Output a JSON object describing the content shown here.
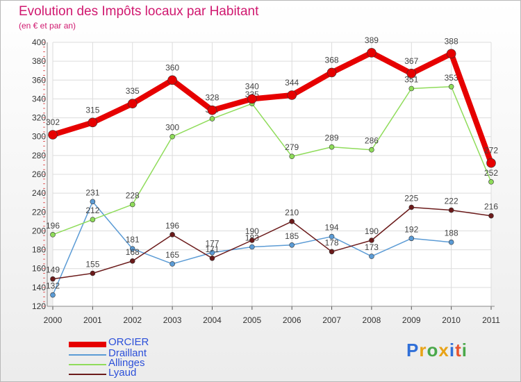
{
  "header": {
    "title": "Evolution des Impôts locaux par Habitant",
    "subtitle": "(en € et par an)"
  },
  "logo": {
    "text": "Proxiti"
  },
  "chart_data": {
    "type": "line",
    "title": "Evolution des Impôts locaux par Habitant",
    "subtitle": "(en € et par an)",
    "xlabel": "",
    "ylabel": "",
    "x": [
      "2000",
      "2001",
      "2002",
      "2003",
      "2004",
      "2005",
      "2006",
      "2007",
      "2008",
      "2009",
      "2010",
      "2011"
    ],
    "ylim": [
      120,
      400
    ],
    "yticks": [
      120,
      140,
      160,
      180,
      200,
      220,
      240,
      260,
      280,
      300,
      320,
      340,
      360,
      380,
      400
    ],
    "grid": true,
    "legend_position": "bottom-left",
    "series": [
      {
        "name": "ORCIER",
        "color": "#e60000",
        "values": [
          302,
          315,
          335,
          360,
          328,
          340,
          344,
          368,
          389,
          367,
          388,
          272
        ],
        "labels": [
          "302",
          "315",
          "335",
          "360",
          "328",
          "340",
          "344",
          "368",
          "389",
          "367",
          "388",
          "272"
        ]
      },
      {
        "name": "Draillant",
        "color": "#5b9bd5",
        "values": [
          132,
          231,
          181,
          165,
          177,
          183,
          185,
          194,
          173,
          192,
          188,
          null
        ],
        "labels": [
          "132",
          "231",
          "181",
          "165",
          "177",
          "183",
          "185",
          "194",
          "173",
          "192",
          "188",
          ""
        ]
      },
      {
        "name": "Allinges",
        "color": "#8fdc5a",
        "values": [
          196,
          212,
          228,
          300,
          319,
          335,
          279,
          289,
          286,
          351,
          353,
          252
        ],
        "labels": [
          "196",
          "212",
          "228",
          "300",
          "319",
          "335",
          "279",
          "289",
          "286",
          "351",
          "353",
          "252"
        ]
      },
      {
        "name": "Lyaud",
        "color": "#6b1a1a",
        "values": [
          149,
          155,
          168,
          196,
          171,
          190,
          210,
          178,
          190,
          225,
          222,
          216
        ],
        "labels": [
          "149",
          "155",
          "168",
          "196",
          "171",
          "190",
          "210",
          "178",
          "190",
          "225",
          "222",
          "216"
        ]
      }
    ]
  }
}
